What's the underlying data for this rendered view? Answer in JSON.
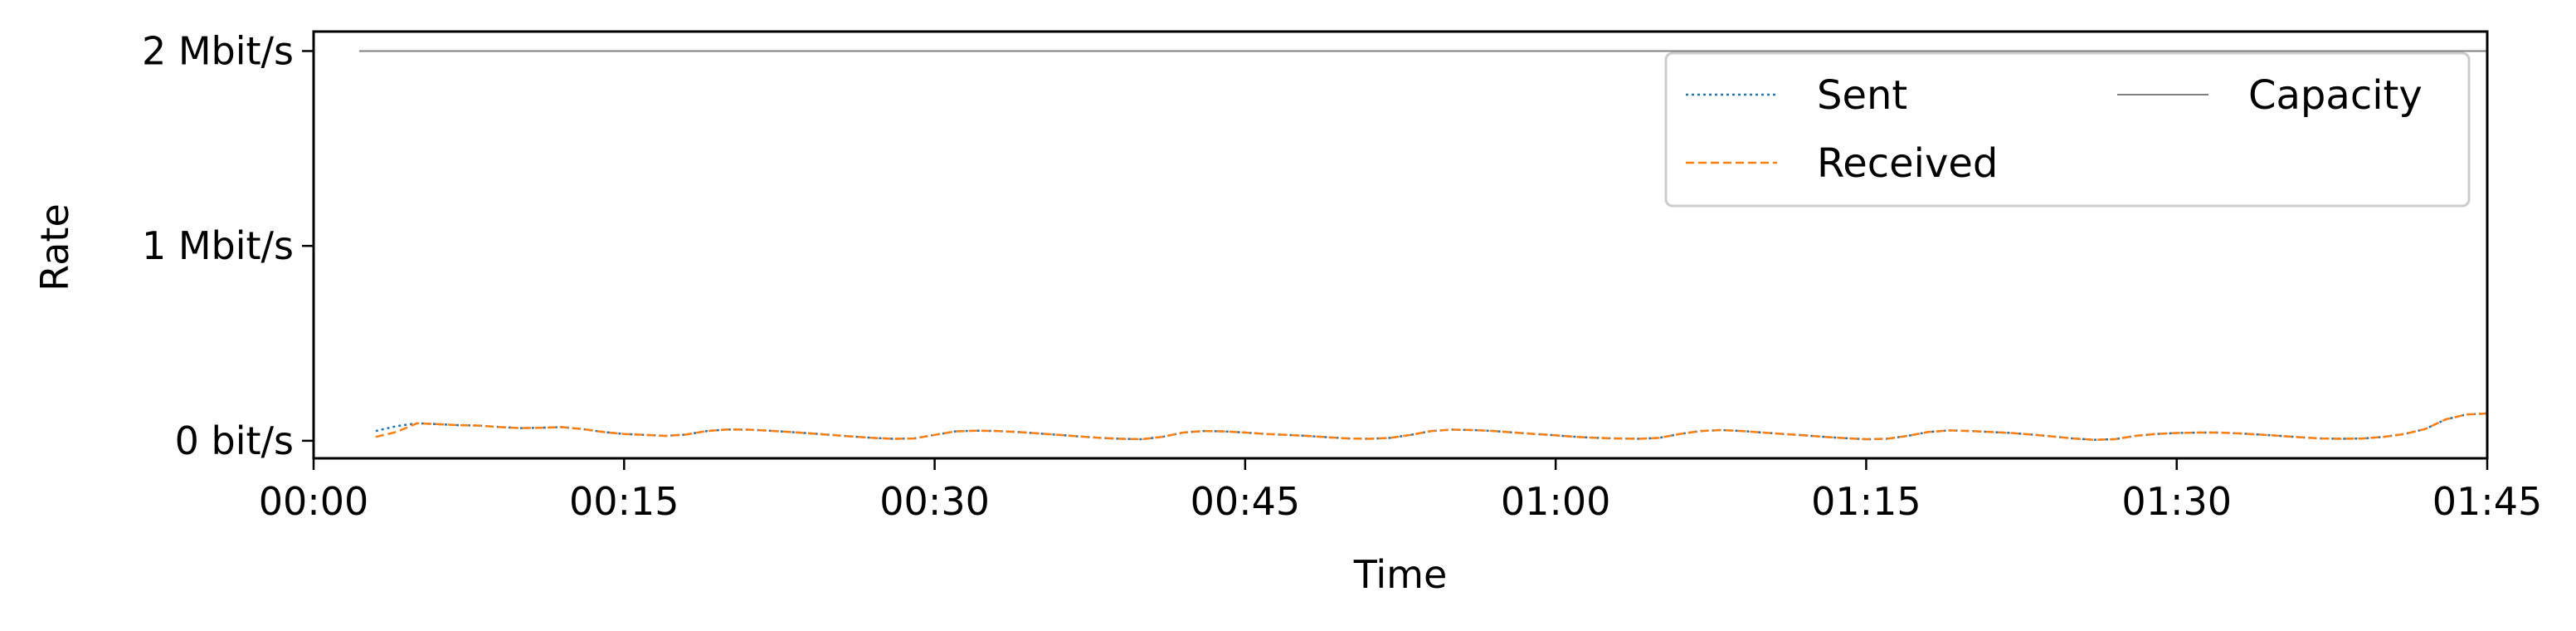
{
  "chart_data": {
    "type": "line",
    "title": "",
    "xlabel": "Time",
    "ylabel": "Rate",
    "x_unit": "minutes",
    "xlim": [
      0,
      105
    ],
    "ylim": [
      -0.09,
      2.1
    ],
    "y_unit": "Mbit/s",
    "x_ticks": [
      {
        "value": 0,
        "label": "00:00"
      },
      {
        "value": 15,
        "label": "00:15"
      },
      {
        "value": 30,
        "label": "00:30"
      },
      {
        "value": 45,
        "label": "00:45"
      },
      {
        "value": 60,
        "label": "01:00"
      },
      {
        "value": 75,
        "label": "01:15"
      },
      {
        "value": 90,
        "label": "01:30"
      },
      {
        "value": 105,
        "label": "01:45"
      }
    ],
    "y_ticks": [
      {
        "value": 0,
        "label": "0 bit/s"
      },
      {
        "value": 1,
        "label": "1 Mbit/s"
      },
      {
        "value": 2,
        "label": "2 Mbit/s"
      }
    ],
    "grid": false,
    "legend": {
      "placement": "top-right",
      "columns": 2
    },
    "series": [
      {
        "name": "Sent",
        "color": "#1f77b4",
        "style": "dotted",
        "x": [
          3,
          4,
          5,
          6,
          7,
          8,
          9,
          10,
          11,
          12,
          13,
          14,
          15,
          16,
          17,
          18,
          19,
          20,
          21,
          22,
          23,
          24,
          25,
          26,
          27,
          28,
          29,
          30,
          31,
          32,
          33,
          34,
          35,
          36,
          37,
          38,
          39,
          40,
          41,
          42,
          43,
          44,
          45,
          46,
          47,
          48,
          49,
          50,
          51,
          52,
          53,
          54,
          55,
          56,
          57,
          58,
          59,
          60,
          61,
          62,
          63,
          64,
          65,
          66,
          67,
          68,
          69,
          70,
          71,
          72,
          73,
          74,
          75,
          76,
          77,
          78,
          79,
          80,
          81,
          82,
          83,
          84,
          85,
          86,
          87,
          88,
          89,
          90,
          91,
          92,
          93,
          94,
          95,
          96,
          97,
          98,
          99,
          100,
          101,
          102,
          103,
          104,
          105
        ],
        "values": [
          0.05,
          0.075,
          0.09,
          0.085,
          0.08,
          0.078,
          0.07,
          0.065,
          0.067,
          0.07,
          0.06,
          0.045,
          0.035,
          0.03,
          0.025,
          0.032,
          0.05,
          0.058,
          0.057,
          0.052,
          0.045,
          0.038,
          0.03,
          0.022,
          0.015,
          0.01,
          0.012,
          0.03,
          0.048,
          0.052,
          0.05,
          0.045,
          0.038,
          0.03,
          0.022,
          0.015,
          0.01,
          0.008,
          0.02,
          0.042,
          0.05,
          0.048,
          0.042,
          0.035,
          0.03,
          0.025,
          0.018,
          0.012,
          0.01,
          0.015,
          0.03,
          0.05,
          0.057,
          0.055,
          0.05,
          0.042,
          0.035,
          0.028,
          0.02,
          0.015,
          0.012,
          0.01,
          0.015,
          0.035,
          0.05,
          0.055,
          0.05,
          0.042,
          0.035,
          0.028,
          0.02,
          0.013,
          0.008,
          0.01,
          0.025,
          0.045,
          0.053,
          0.05,
          0.045,
          0.04,
          0.032,
          0.022,
          0.012,
          0.005,
          0.008,
          0.025,
          0.035,
          0.04,
          0.042,
          0.042,
          0.038,
          0.032,
          0.025,
          0.018,
          0.012,
          0.01,
          0.012,
          0.02,
          0.035,
          0.06,
          0.11,
          0.135,
          0.14
        ]
      },
      {
        "name": "Received",
        "color": "#ff7f0e",
        "style": "dashed",
        "x": [
          3,
          4,
          5,
          6,
          7,
          8,
          9,
          10,
          11,
          12,
          13,
          14,
          15,
          16,
          17,
          18,
          19,
          20,
          21,
          22,
          23,
          24,
          25,
          26,
          27,
          28,
          29,
          30,
          31,
          32,
          33,
          34,
          35,
          36,
          37,
          38,
          39,
          40,
          41,
          42,
          43,
          44,
          45,
          46,
          47,
          48,
          49,
          50,
          51,
          52,
          53,
          54,
          55,
          56,
          57,
          58,
          59,
          60,
          61,
          62,
          63,
          64,
          65,
          66,
          67,
          68,
          69,
          70,
          71,
          72,
          73,
          74,
          75,
          76,
          77,
          78,
          79,
          80,
          81,
          82,
          83,
          84,
          85,
          86,
          87,
          88,
          89,
          90,
          91,
          92,
          93,
          94,
          95,
          96,
          97,
          98,
          99,
          100,
          101,
          102,
          103,
          104,
          105
        ],
        "values": [
          0.02,
          0.045,
          0.09,
          0.085,
          0.08,
          0.078,
          0.07,
          0.065,
          0.067,
          0.07,
          0.06,
          0.045,
          0.035,
          0.03,
          0.025,
          0.032,
          0.05,
          0.058,
          0.057,
          0.052,
          0.045,
          0.038,
          0.03,
          0.022,
          0.015,
          0.01,
          0.012,
          0.03,
          0.048,
          0.052,
          0.05,
          0.045,
          0.038,
          0.03,
          0.022,
          0.015,
          0.01,
          0.008,
          0.02,
          0.042,
          0.05,
          0.048,
          0.042,
          0.035,
          0.03,
          0.025,
          0.018,
          0.012,
          0.01,
          0.015,
          0.03,
          0.05,
          0.057,
          0.055,
          0.05,
          0.042,
          0.035,
          0.028,
          0.02,
          0.015,
          0.012,
          0.01,
          0.015,
          0.035,
          0.05,
          0.055,
          0.05,
          0.042,
          0.035,
          0.028,
          0.02,
          0.013,
          0.008,
          0.01,
          0.025,
          0.045,
          0.053,
          0.05,
          0.045,
          0.04,
          0.032,
          0.022,
          0.012,
          0.005,
          0.008,
          0.025,
          0.035,
          0.04,
          0.042,
          0.042,
          0.038,
          0.032,
          0.025,
          0.018,
          0.012,
          0.01,
          0.012,
          0.02,
          0.035,
          0.06,
          0.11,
          0.135,
          0.14
        ]
      },
      {
        "name": "Capacity",
        "color": "#808080",
        "style": "solid",
        "x": [
          2.2,
          105
        ],
        "values": [
          2,
          2
        ]
      }
    ]
  }
}
